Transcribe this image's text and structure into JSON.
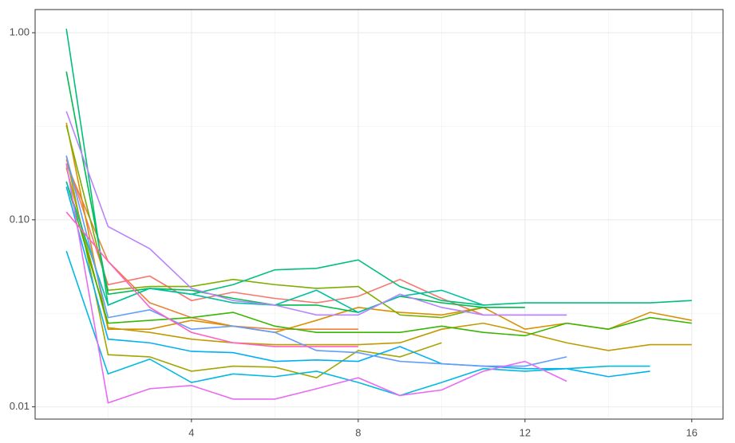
{
  "chart_data": {
    "type": "line",
    "x": [
      1,
      2,
      3,
      4,
      5,
      6,
      7,
      8,
      9,
      10,
      11,
      12,
      13,
      14,
      15,
      16
    ],
    "xlim": [
      0.25,
      16.75
    ],
    "xticks": [
      4,
      8,
      12,
      16
    ],
    "ylim": [
      0.0086,
      1.33
    ],
    "log_y": true,
    "grid": true,
    "yticks": [
      {
        "value": 0.01,
        "label": "0.01"
      },
      {
        "value": 0.1,
        "label": "0.10"
      },
      {
        "value": 1,
        "label": "1.00"
      }
    ],
    "series": [
      {
        "color": "#F8766D",
        "values": [
          0.21,
          0.045,
          0.05,
          0.037,
          0.041,
          0.038,
          0.036,
          0.039,
          0.048,
          0.038,
          0.031,
          0.031,
          0.031,
          null,
          null,
          null
        ]
      },
      {
        "color": "#EC8239",
        "values": [
          0.2,
          0.06,
          0.036,
          0.03,
          0.027,
          0.026,
          0.026,
          0.026,
          null,
          null,
          null,
          null,
          null,
          null,
          null,
          null
        ]
      },
      {
        "color": "#D89000",
        "values": [
          0.33,
          0.026,
          0.026,
          0.029,
          0.027,
          0.025,
          0.029,
          0.034,
          0.032,
          0.031,
          0.034,
          0.026,
          0.028,
          0.026,
          0.032,
          0.029
        ]
      },
      {
        "color": "#C09B00",
        "values": [
          0.19,
          0.0265,
          0.025,
          0.023,
          0.022,
          0.0215,
          0.0215,
          0.0215,
          0.022,
          0.026,
          0.028,
          0.025,
          0.022,
          0.02,
          0.0215,
          0.0215
        ]
      },
      {
        "color": "#A3A500",
        "values": [
          0.22,
          0.019,
          0.0185,
          0.0155,
          0.0165,
          0.0163,
          0.0143,
          0.02,
          0.0185,
          0.022,
          null,
          null,
          null,
          null,
          null,
          null
        ]
      },
      {
        "color": "#7CAE00",
        "values": [
          0.32,
          0.042,
          0.044,
          0.044,
          0.048,
          0.045,
          0.043,
          0.044,
          0.031,
          0.03,
          0.034,
          null,
          null,
          null,
          null,
          null
        ]
      },
      {
        "color": "#39B600",
        "values": [
          0.16,
          0.028,
          0.029,
          0.03,
          0.032,
          0.027,
          0.025,
          0.025,
          0.025,
          0.027,
          0.025,
          0.024,
          0.028,
          0.026,
          0.03,
          0.028
        ]
      },
      {
        "color": "#00BB4E",
        "values": [
          0.62,
          0.04,
          0.043,
          0.042,
          0.038,
          0.035,
          0.035,
          0.032,
          0.039,
          0.036,
          0.034,
          0.034,
          null,
          null,
          null,
          null
        ]
      },
      {
        "color": "#00BF7D",
        "values": [
          1.05,
          0.035,
          0.043,
          0.04,
          0.045,
          0.054,
          0.055,
          0.061,
          0.044,
          0.037,
          0.035,
          0.036,
          0.036,
          0.036,
          0.036,
          0.037
        ]
      },
      {
        "color": "#00C1A3",
        "values": [
          0.16,
          0.035,
          0.043,
          0.04,
          0.036,
          0.035,
          0.042,
          0.032,
          0.039,
          0.042,
          0.035,
          null,
          null,
          null,
          null,
          null
        ]
      },
      {
        "color": "#00BAE0",
        "values": [
          0.068,
          0.015,
          0.018,
          0.0135,
          0.015,
          0.0145,
          0.0155,
          0.0135,
          0.0115,
          0.0135,
          0.016,
          0.0155,
          0.016,
          0.0165,
          0.0165,
          null
        ]
      },
      {
        "color": "#00B0F6",
        "values": [
          0.15,
          0.023,
          0.022,
          0.0198,
          0.0195,
          0.0175,
          0.0178,
          0.0175,
          0.021,
          0.017,
          0.0165,
          0.016,
          0.016,
          0.0145,
          0.0155,
          null
        ]
      },
      {
        "color": "#619CFF",
        "values": [
          0.22,
          0.03,
          0.033,
          0.026,
          0.027,
          0.025,
          0.02,
          0.0195,
          0.0175,
          0.017,
          0.0165,
          0.0165,
          0.0185,
          null,
          null,
          null
        ]
      },
      {
        "color": "#B983FF",
        "values": [
          0.38,
          0.092,
          0.07,
          0.043,
          0.037,
          0.035,
          0.031,
          0.031,
          0.04,
          0.034,
          0.031,
          0.031,
          0.031,
          null,
          null,
          null
        ]
      },
      {
        "color": "#E76BF3",
        "values": [
          0.2,
          0.0105,
          0.0125,
          0.013,
          0.011,
          0.011,
          0.0125,
          0.0143,
          0.0115,
          0.0123,
          0.0155,
          0.0175,
          0.0137,
          null,
          null,
          null
        ]
      },
      {
        "color": "#FF61C3",
        "values": [
          0.11,
          0.06,
          0.034,
          0.025,
          0.022,
          0.021,
          0.021,
          0.021,
          null,
          null,
          null,
          null,
          null,
          null,
          null,
          null
        ]
      }
    ]
  }
}
